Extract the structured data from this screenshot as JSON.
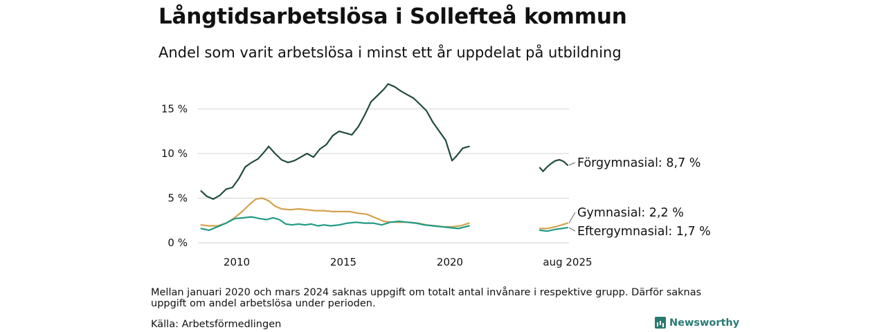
{
  "header": {
    "title": "Långtidsarbetslösa i Sollefteå kommun",
    "subtitle": "Andel som varit arbetslösa i minst ett år uppdelat på utbildning"
  },
  "footer": {
    "note": "Mellan januari 2020 och mars 2024 saknas uppgift om totalt antal invånare i respektive grupp. Därför saknas uppgift om andel arbetslösa under perioden.",
    "source": "Källa: Arbetsförmedlingen",
    "brand": "Newsworthy"
  },
  "chart_data": {
    "type": "line",
    "title": "Långtidsarbetslösa i Sollefteå kommun",
    "subtitle": "Andel som varit arbetslösa i minst ett år uppdelat på utbildning",
    "y_ticks": [
      "0 %",
      "5 %",
      "10 %",
      "15 %"
    ],
    "y_tick_values": [
      0,
      5,
      10,
      15
    ],
    "x_ticks": [
      "2010",
      "2015",
      "2020",
      "aug 2025"
    ],
    "x_tick_values": [
      2010,
      2015,
      2020,
      2025.583
    ],
    "xlim": [
      2008.2,
      2025.9
    ],
    "ylim": [
      0,
      18.5
    ],
    "grid": true,
    "axis_break": {
      "from": 2021.0,
      "to": 2024.25,
      "displayed_gap": true
    },
    "series": [
      {
        "name": "Förgymnasial",
        "end_label": "Förgymnasial: 8,7 %",
        "color": "#1f4a3f",
        "segments": [
          {
            "x": [
              2008.33,
              2008.6,
              2008.9,
              2009.2,
              2009.5,
              2009.8,
              2010.1,
              2010.4,
              2010.7,
              2011.0,
              2011.3,
              2011.5,
              2011.8,
              2012.1,
              2012.4,
              2012.7,
              2013.0,
              2013.3,
              2013.6,
              2013.9,
              2014.2,
              2014.5,
              2014.8,
              2015.1,
              2015.4,
              2015.7,
              2016.0,
              2016.3,
              2016.6,
              2016.9,
              2017.1,
              2017.4,
              2017.7,
              2018.0,
              2018.3,
              2018.6,
              2018.9,
              2019.2,
              2019.5,
              2019.8,
              2020.1,
              2020.3,
              2020.6,
              2020.9
            ],
            "y": [
              5.8,
              5.2,
              4.9,
              5.3,
              6.0,
              6.2,
              7.2,
              8.5,
              9.0,
              9.4,
              10.2,
              10.8,
              10.0,
              9.3,
              9.0,
              9.2,
              9.6,
              10.0,
              9.6,
              10.5,
              11.0,
              12.0,
              12.5,
              12.3,
              12.1,
              13.0,
              14.3,
              15.8,
              16.5,
              17.2,
              17.8,
              17.5,
              17.0,
              16.6,
              16.2,
              15.5,
              14.8,
              13.5,
              12.5,
              11.5,
              9.2,
              9.7,
              10.6,
              10.8
            ]
          },
          {
            "x": [
              2024.25,
              2024.4,
              2024.6,
              2024.8,
              2025.0,
              2025.2,
              2025.4,
              2025.583
            ],
            "y": [
              8.4,
              8.0,
              8.5,
              8.9,
              9.2,
              9.3,
              9.1,
              8.7
            ]
          }
        ]
      },
      {
        "name": "Gymnasial",
        "end_label": "Gymnasial: 2,2 %",
        "color": "#d4a24c",
        "segments": [
          {
            "x": [
              2008.33,
              2008.7,
              2009.1,
              2009.5,
              2009.9,
              2010.3,
              2010.6,
              2010.9,
              2011.2,
              2011.5,
              2011.8,
              2012.1,
              2012.5,
              2012.9,
              2013.3,
              2013.7,
              2014.1,
              2014.5,
              2014.9,
              2015.3,
              2015.7,
              2016.1,
              2016.5,
              2016.9,
              2017.3,
              2017.7,
              2018.1,
              2018.5,
              2018.9,
              2019.3,
              2019.7,
              2020.1,
              2020.5,
              2020.9
            ],
            "y": [
              2.0,
              1.9,
              1.9,
              2.2,
              2.8,
              3.6,
              4.3,
              4.9,
              5.0,
              4.7,
              4.1,
              3.8,
              3.7,
              3.8,
              3.7,
              3.6,
              3.6,
              3.5,
              3.5,
              3.5,
              3.3,
              3.2,
              2.8,
              2.4,
              2.3,
              2.3,
              2.3,
              2.2,
              2.0,
              1.9,
              1.8,
              1.8,
              1.9,
              2.2
            ]
          },
          {
            "x": [
              2024.25,
              2024.6,
              2025.0,
              2025.3,
              2025.583
            ],
            "y": [
              1.6,
              1.6,
              1.8,
              2.0,
              2.2
            ]
          }
        ]
      },
      {
        "name": "Eftergymnasial",
        "end_label": "Eftergymnasial: 1,7 %",
        "color": "#1f9a86",
        "segments": [
          {
            "x": [
              2008.33,
              2008.7,
              2009.1,
              2009.5,
              2009.9,
              2010.3,
              2010.7,
              2011.1,
              2011.4,
              2011.7,
              2012.0,
              2012.3,
              2012.6,
              2012.9,
              2013.2,
              2013.5,
              2013.8,
              2014.1,
              2014.4,
              2014.8,
              2015.2,
              2015.6,
              2016.0,
              2016.4,
              2016.8,
              2017.2,
              2017.6,
              2018.0,
              2018.4,
              2018.8,
              2019.2,
              2019.6,
              2020.0,
              2020.4,
              2020.9
            ],
            "y": [
              1.6,
              1.4,
              1.8,
              2.2,
              2.7,
              2.8,
              2.9,
              2.7,
              2.6,
              2.8,
              2.6,
              2.1,
              2.0,
              2.1,
              2.0,
              2.1,
              1.9,
              2.0,
              1.9,
              2.0,
              2.2,
              2.3,
              2.2,
              2.2,
              2.0,
              2.3,
              2.4,
              2.3,
              2.2,
              2.0,
              1.9,
              1.8,
              1.7,
              1.6,
              1.9
            ]
          },
          {
            "x": [
              2024.25,
              2024.6,
              2025.0,
              2025.3,
              2025.583
            ],
            "y": [
              1.4,
              1.3,
              1.5,
              1.6,
              1.7
            ]
          }
        ]
      }
    ]
  }
}
